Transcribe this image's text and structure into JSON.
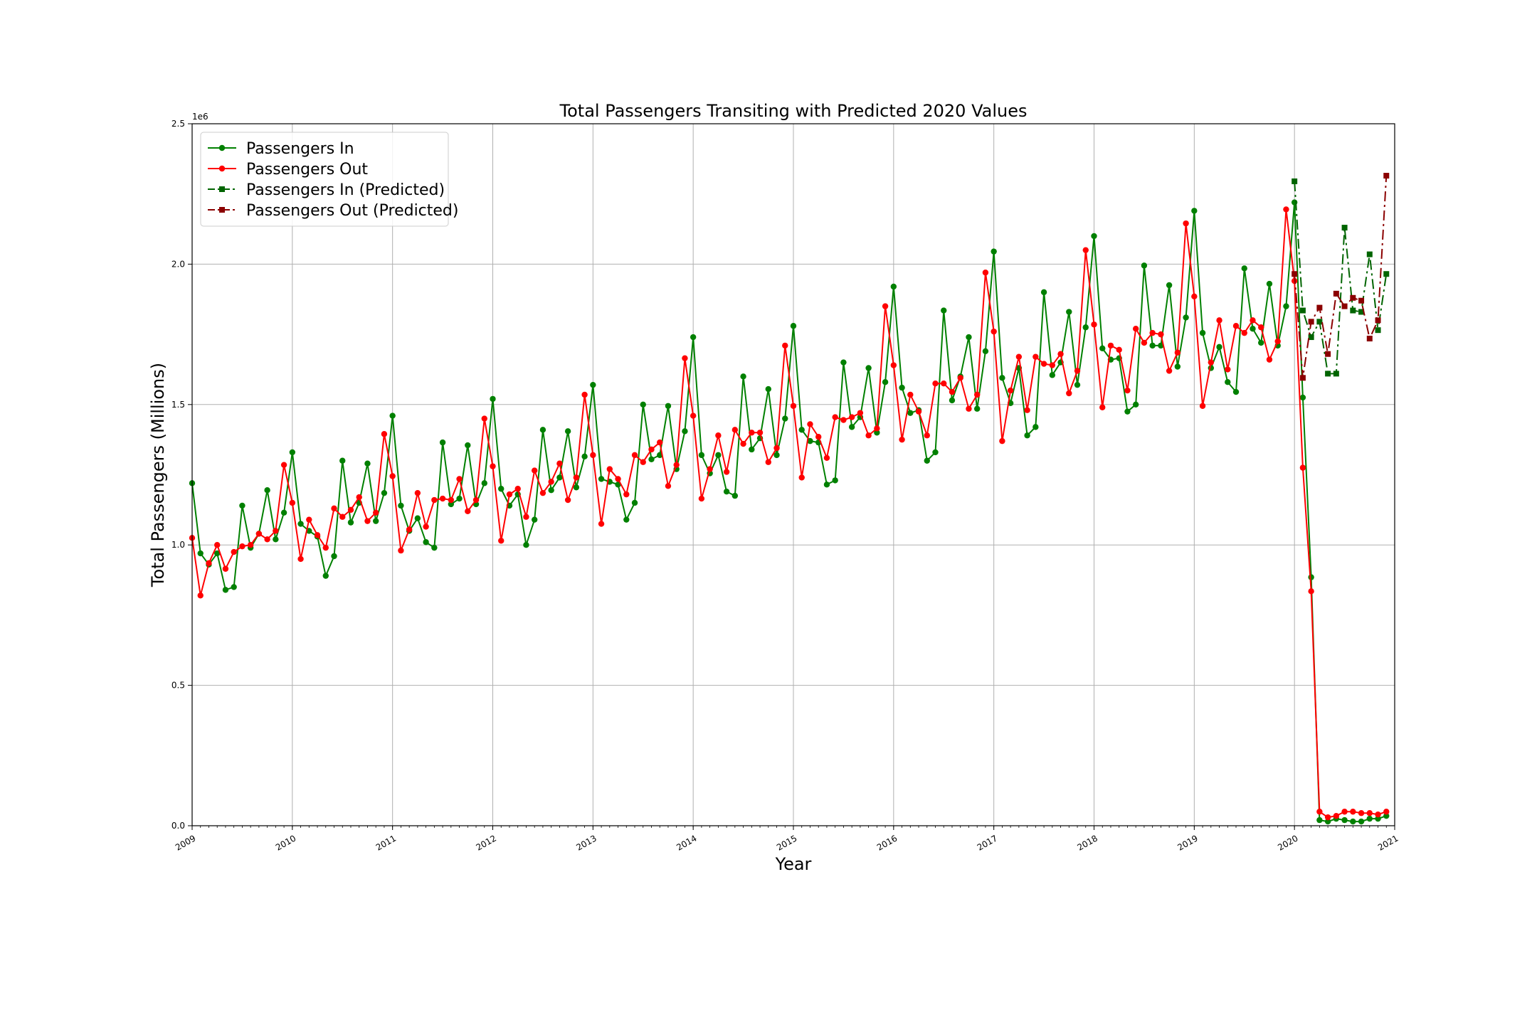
{
  "chart_data": {
    "type": "line",
    "title": "Total Passengers Transiting with Predicted 2020 Values",
    "xlabel": "Year",
    "ylabel": "Total Passengers (Millions)",
    "y_scale_note": "1e6",
    "xlim": [
      "2009-01",
      "2021-01"
    ],
    "ylim": [
      0,
      2500000
    ],
    "x_ticks": [
      "2009",
      "2010",
      "2011",
      "2012",
      "2013",
      "2014",
      "2015",
      "2016",
      "2017",
      "2018",
      "2019",
      "2020",
      "2021"
    ],
    "y_ticks": [
      "0.0",
      "0.5",
      "1.0",
      "1.5",
      "2.0",
      "2.5"
    ],
    "grid": true,
    "legend_position": "upper-left",
    "series": [
      {
        "name": "Passengers In",
        "color": "#008000",
        "style": "solid",
        "marker": "circle",
        "x_start": "2009-01",
        "values": [
          1220000,
          970000,
          930000,
          970000,
          840000,
          850000,
          1140000,
          990000,
          1040000,
          1195000,
          1020000,
          1115000,
          1330000,
          1075000,
          1050000,
          1030000,
          890000,
          960000,
          1300000,
          1080000,
          1150000,
          1290000,
          1085000,
          1185000,
          1460000,
          1140000,
          1050000,
          1095000,
          1010000,
          990000,
          1365000,
          1145000,
          1165000,
          1355000,
          1145000,
          1220000,
          1520000,
          1200000,
          1140000,
          1180000,
          1000000,
          1090000,
          1410000,
          1195000,
          1240000,
          1405000,
          1205000,
          1315000,
          1570000,
          1235000,
          1225000,
          1215000,
          1090000,
          1150000,
          1500000,
          1305000,
          1320000,
          1495000,
          1270000,
          1405000,
          1740000,
          1320000,
          1255000,
          1320000,
          1190000,
          1175000,
          1600000,
          1340000,
          1380000,
          1555000,
          1320000,
          1450000,
          1780000,
          1410000,
          1370000,
          1365000,
          1215000,
          1230000,
          1650000,
          1420000,
          1455000,
          1630000,
          1400000,
          1580000,
          1920000,
          1560000,
          1470000,
          1480000,
          1300000,
          1330000,
          1835000,
          1515000,
          1600000,
          1740000,
          1485000,
          1690000,
          2045000,
          1595000,
          1505000,
          1630000,
          1390000,
          1420000,
          1900000,
          1605000,
          1650000,
          1830000,
          1570000,
          1775000,
          2100000,
          1700000,
          1660000,
          1665000,
          1475000,
          1500000,
          1995000,
          1710000,
          1710000,
          1925000,
          1635000,
          1810000,
          2190000,
          1755000,
          1630000,
          1705000,
          1580000,
          1545000,
          1985000,
          1770000,
          1720000,
          1930000,
          1710000,
          1850000,
          2220000,
          1525000,
          885000,
          20000,
          15000,
          25000,
          20000,
          15000,
          15000,
          25000,
          25000,
          35000
        ]
      },
      {
        "name": "Passengers Out",
        "color": "#ff0000",
        "style": "solid",
        "marker": "circle",
        "x_start": "2009-01",
        "values": [
          1025000,
          820000,
          935000,
          1000000,
          915000,
          975000,
          995000,
          1000000,
          1040000,
          1020000,
          1050000,
          1285000,
          1150000,
          950000,
          1090000,
          1035000,
          990000,
          1130000,
          1100000,
          1125000,
          1170000,
          1085000,
          1115000,
          1395000,
          1245000,
          980000,
          1055000,
          1185000,
          1065000,
          1160000,
          1165000,
          1160000,
          1235000,
          1120000,
          1160000,
          1450000,
          1280000,
          1015000,
          1180000,
          1200000,
          1100000,
          1265000,
          1185000,
          1225000,
          1290000,
          1160000,
          1240000,
          1535000,
          1320000,
          1075000,
          1270000,
          1235000,
          1180000,
          1320000,
          1295000,
          1340000,
          1365000,
          1210000,
          1285000,
          1665000,
          1460000,
          1165000,
          1270000,
          1390000,
          1260000,
          1410000,
          1360000,
          1400000,
          1400000,
          1295000,
          1345000,
          1710000,
          1495000,
          1240000,
          1430000,
          1385000,
          1310000,
          1455000,
          1445000,
          1455000,
          1470000,
          1390000,
          1415000,
          1850000,
          1640000,
          1375000,
          1535000,
          1475000,
          1390000,
          1575000,
          1575000,
          1545000,
          1595000,
          1485000,
          1535000,
          1970000,
          1760000,
          1370000,
          1550000,
          1670000,
          1480000,
          1670000,
          1645000,
          1640000,
          1680000,
          1540000,
          1620000,
          2050000,
          1785000,
          1490000,
          1710000,
          1695000,
          1550000,
          1770000,
          1720000,
          1755000,
          1750000,
          1620000,
          1685000,
          2145000,
          1885000,
          1495000,
          1650000,
          1800000,
          1625000,
          1780000,
          1755000,
          1800000,
          1775000,
          1660000,
          1725000,
          2195000,
          1940000,
          1275000,
          835000,
          50000,
          30000,
          35000,
          50000,
          50000,
          45000,
          45000,
          40000,
          50000
        ]
      },
      {
        "name": "Passengers In (Predicted)",
        "color": "#006400",
        "style": "dashdot",
        "marker": "square",
        "x_start": "2020-01",
        "values": [
          2295000,
          1835000,
          1740000,
          1795000,
          1610000,
          1610000,
          2130000,
          1835000,
          1830000,
          2035000,
          1765000,
          1965000
        ]
      },
      {
        "name": "Passengers Out (Predicted)",
        "color": "#8b0000",
        "style": "dashdot",
        "marker": "square",
        "x_start": "2020-01",
        "values": [
          1965000,
          1595000,
          1795000,
          1845000,
          1680000,
          1895000,
          1850000,
          1880000,
          1870000,
          1735000,
          1800000,
          2315000
        ]
      }
    ]
  }
}
